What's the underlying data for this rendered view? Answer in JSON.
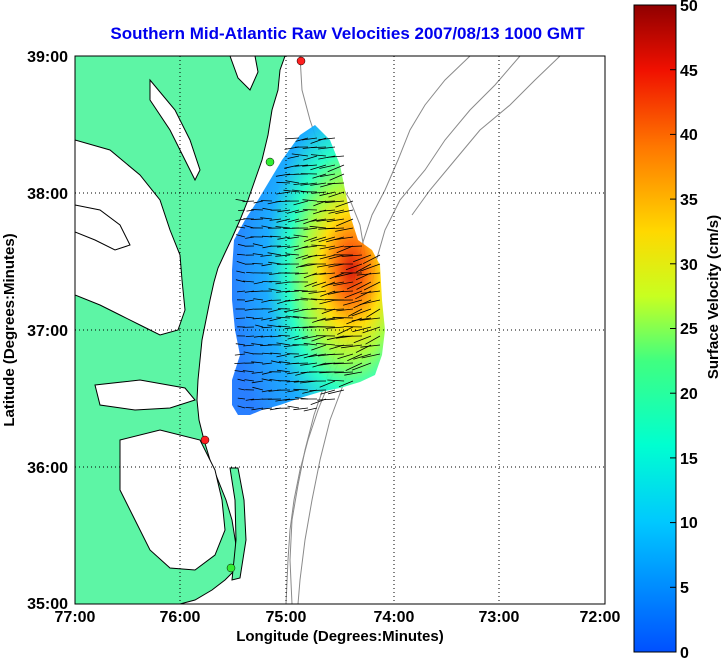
{
  "title": "Southern Mid-Atlantic Raw Velocities 2007/08/13 1000 GMT",
  "x_axis": {
    "label": "Longitude (Degrees:Minutes)",
    "ticks": [
      "77:00",
      "76:00",
      "75:00",
      "74:00",
      "73:00",
      "72:00"
    ]
  },
  "y_axis": {
    "label": "Latitude (Degrees:Minutes)",
    "ticks": [
      "39:00",
      "38:00",
      "37:00",
      "36:00",
      "35:00"
    ]
  },
  "colorbar": {
    "label": "Surface Velocity (cm/s)",
    "ticks": [
      "50",
      "45",
      "40",
      "35",
      "30",
      "25",
      "20",
      "15",
      "10",
      "5",
      "0"
    ],
    "range": [
      0,
      50
    ],
    "colormap": "jet"
  },
  "colors": {
    "title": "#0000ee",
    "land": "#5df5a5",
    "coastline": "#000000",
    "bathymetry": "#8a8a8a",
    "grid": "#000000",
    "station_red": "#ff2020",
    "station_green": "#33ee33"
  },
  "map": {
    "lon_range": [
      "77:00",
      "72:00"
    ],
    "lat_range": [
      "35:00",
      "39:00"
    ],
    "grid": "dotted"
  }
}
